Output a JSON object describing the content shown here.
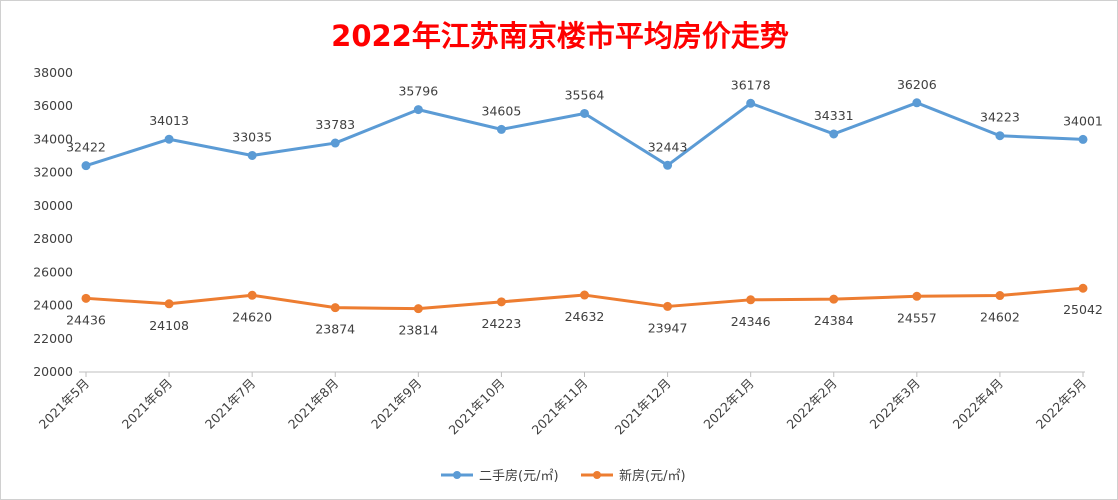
{
  "chart_data": {
    "type": "line",
    "title": "2022年江苏南京楼市平均房价走势",
    "categories": [
      "2021年5月",
      "2021年6月",
      "2021年7月",
      "2021年8月",
      "2021年9月",
      "2021年10月",
      "2021年11月",
      "2021年12月",
      "2022年1月",
      "2022年2月",
      "2022年3月",
      "2022年4月",
      "2022年5月"
    ],
    "series": [
      {
        "name": "二手房(元/㎡)",
        "color": "#5b9bd5",
        "values": [
          32422,
          34013,
          33035,
          33783,
          35796,
          34605,
          35564,
          32443,
          36178,
          34331,
          36206,
          34223,
          34001
        ]
      },
      {
        "name": "新房(元/㎡)",
        "color": "#ed7d31",
        "values": [
          24436,
          24108,
          24620,
          23874,
          23814,
          24223,
          24632,
          23947,
          24346,
          24384,
          24557,
          24602,
          25042
        ]
      }
    ],
    "ylim": [
      20000,
      38000
    ],
    "yticks": [
      20000,
      22000,
      24000,
      26000,
      28000,
      30000,
      32000,
      34000,
      36000,
      38000
    ],
    "grid": false,
    "legend_position": "bottom",
    "data_labels": true
  }
}
